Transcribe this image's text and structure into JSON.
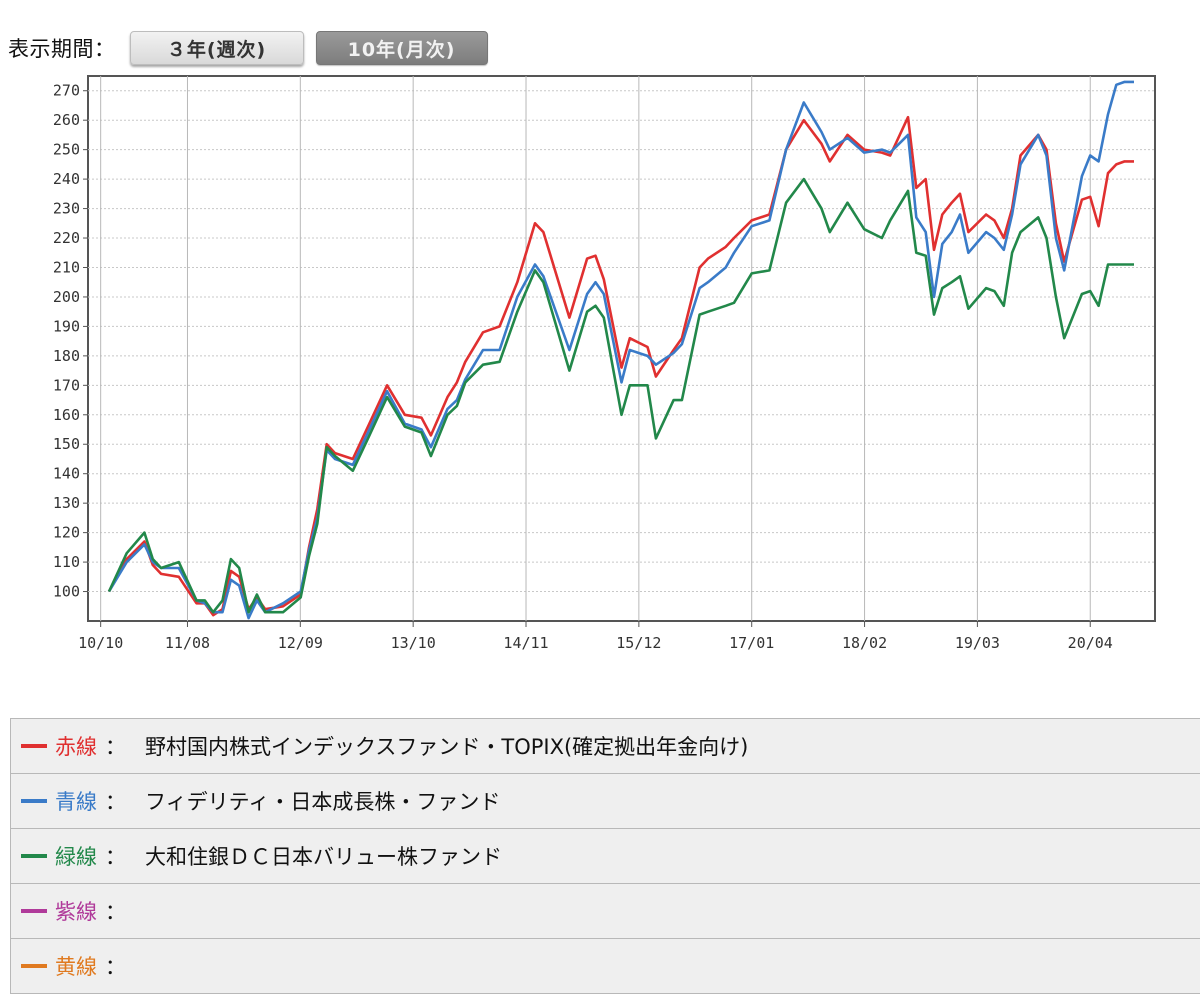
{
  "period_selector": {
    "label": "表示期間：",
    "options": [
      {
        "label": "３年(週次)",
        "active": true
      },
      {
        "label": "10年(月次)",
        "active": false
      }
    ]
  },
  "legend": [
    {
      "name": "赤線",
      "colon": "：",
      "fund": "野村国内株式インデックスファンド・TOPIX(確定拠出年金向け)",
      "color": "#e03030"
    },
    {
      "name": "青線",
      "colon": "：",
      "fund": "フィデリティ・日本成長株・ファンド",
      "color": "#3a7bc8"
    },
    {
      "name": "緑線",
      "colon": "：",
      "fund": "大和住銀ＤＣ日本バリュー株ファンド",
      "color": "#22884a"
    },
    {
      "name": "紫線",
      "colon": "：",
      "fund": "",
      "color": "#b03a9a"
    },
    {
      "name": "黄線",
      "colon": "：",
      "fund": "",
      "color": "#e07a20"
    }
  ],
  "chart_data": {
    "type": "line",
    "x_tick_labels": [
      "10/10",
      "11/08",
      "12/09",
      "13/10",
      "14/11",
      "15/12",
      "17/01",
      "18/02",
      "19/03",
      "20/04"
    ],
    "x_range": [
      2010.83,
      2020.67
    ],
    "ylim": [
      90,
      275
    ],
    "y_ticks": [
      100,
      110,
      120,
      130,
      140,
      150,
      160,
      170,
      180,
      190,
      200,
      210,
      220,
      230,
      240,
      250,
      260,
      270
    ],
    "grid": true,
    "series": [
      {
        "color": "#e03030",
        "x": [
          2010.83,
          2011.0,
          2011.17,
          2011.25,
          2011.33,
          2011.5,
          2011.67,
          2011.75,
          2011.83,
          2011.92,
          2012.0,
          2012.08,
          2012.17,
          2012.25,
          2012.33,
          2012.5,
          2012.67,
          2012.75,
          2012.83,
          2012.92,
          2013.0,
          2013.17,
          2013.33,
          2013.5,
          2013.67,
          2013.83,
          2013.92,
          2014.08,
          2014.17,
          2014.25,
          2014.42,
          2014.58,
          2014.75,
          2014.92,
          2015.0,
          2015.25,
          2015.42,
          2015.5,
          2015.58,
          2015.75,
          2015.83,
          2016.0,
          2016.08,
          2016.25,
          2016.33,
          2016.5,
          2016.58,
          2016.75,
          2016.83,
          2017.0,
          2017.17,
          2017.33,
          2017.5,
          2017.67,
          2017.75,
          2017.92,
          2018.08,
          2018.25,
          2018.33,
          2018.5,
          2018.58,
          2018.67,
          2018.75,
          2018.83,
          2018.92,
          2019.0,
          2019.08,
          2019.25,
          2019.33,
          2019.42,
          2019.5,
          2019.58,
          2019.75,
          2019.83,
          2019.92,
          2020.0,
          2020.17,
          2020.25,
          2020.33,
          2020.42,
          2020.5,
          2020.58,
          2020.67
        ],
        "values": [
          100,
          111,
          117,
          109,
          106,
          105,
          96,
          96,
          92,
          94,
          107,
          105,
          94,
          98,
          94,
          95,
          99,
          115,
          128,
          150,
          147,
          145,
          157,
          170,
          160,
          159,
          153,
          166,
          171,
          178,
          188,
          190,
          205,
          225,
          222,
          193,
          213,
          214,
          206,
          176,
          186,
          183,
          173,
          182,
          186,
          210,
          213,
          217,
          220,
          226,
          228,
          250,
          260,
          252,
          246,
          255,
          250,
          249,
          248,
          261,
          237,
          240,
          216,
          228,
          232,
          235,
          222,
          228,
          226,
          220,
          230,
          248,
          255,
          250,
          225,
          212,
          233,
          234,
          224,
          242,
          245,
          246,
          246
        ]
      },
      {
        "color": "#3a7bc8",
        "x": [
          2010.83,
          2011.0,
          2011.17,
          2011.25,
          2011.33,
          2011.5,
          2011.67,
          2011.75,
          2011.83,
          2011.92,
          2012.0,
          2012.08,
          2012.17,
          2012.25,
          2012.33,
          2012.5,
          2012.67,
          2012.75,
          2012.83,
          2012.92,
          2013.0,
          2013.17,
          2013.33,
          2013.5,
          2013.67,
          2013.83,
          2013.92,
          2014.08,
          2014.17,
          2014.25,
          2014.42,
          2014.58,
          2014.75,
          2014.92,
          2015.0,
          2015.25,
          2015.42,
          2015.5,
          2015.58,
          2015.75,
          2015.83,
          2016.0,
          2016.08,
          2016.25,
          2016.33,
          2016.5,
          2016.58,
          2016.75,
          2016.83,
          2017.0,
          2017.17,
          2017.33,
          2017.5,
          2017.67,
          2017.75,
          2017.92,
          2018.08,
          2018.25,
          2018.33,
          2018.5,
          2018.58,
          2018.67,
          2018.75,
          2018.83,
          2018.92,
          2019.0,
          2019.08,
          2019.25,
          2019.33,
          2019.42,
          2019.5,
          2019.58,
          2019.75,
          2019.83,
          2019.92,
          2020.0,
          2020.17,
          2020.25,
          2020.33,
          2020.42,
          2020.5,
          2020.58,
          2020.67
        ],
        "values": [
          100,
          110,
          116,
          110,
          108,
          108,
          97,
          96,
          93,
          93,
          104,
          102,
          91,
          97,
          93,
          96,
          100,
          114,
          125,
          148,
          145,
          143,
          155,
          168,
          157,
          155,
          149,
          162,
          165,
          172,
          182,
          182,
          200,
          211,
          207,
          182,
          201,
          205,
          201,
          171,
          182,
          180,
          177,
          181,
          184,
          203,
          205,
          210,
          215,
          224,
          226,
          250,
          266,
          256,
          250,
          254,
          249,
          250,
          249,
          255,
          227,
          222,
          200,
          218,
          222,
          228,
          215,
          222,
          220,
          216,
          228,
          245,
          255,
          248,
          220,
          209,
          241,
          248,
          246,
          262,
          272,
          273,
          273
        ]
      },
      {
        "color": "#22884a",
        "x": [
          2010.83,
          2011.0,
          2011.17,
          2011.25,
          2011.33,
          2011.5,
          2011.67,
          2011.75,
          2011.83,
          2011.92,
          2012.0,
          2012.08,
          2012.17,
          2012.25,
          2012.33,
          2012.5,
          2012.67,
          2012.75,
          2012.83,
          2012.92,
          2013.0,
          2013.17,
          2013.33,
          2013.5,
          2013.67,
          2013.83,
          2013.92,
          2014.08,
          2014.17,
          2014.25,
          2014.42,
          2014.58,
          2014.75,
          2014.92,
          2015.0,
          2015.25,
          2015.42,
          2015.5,
          2015.58,
          2015.75,
          2015.83,
          2016.0,
          2016.08,
          2016.25,
          2016.33,
          2016.5,
          2016.58,
          2016.75,
          2016.83,
          2017.0,
          2017.17,
          2017.33,
          2017.5,
          2017.67,
          2017.75,
          2017.92,
          2018.08,
          2018.25,
          2018.33,
          2018.5,
          2018.58,
          2018.67,
          2018.75,
          2018.83,
          2018.92,
          2019.0,
          2019.08,
          2019.25,
          2019.33,
          2019.42,
          2019.5,
          2019.58,
          2019.75,
          2019.83,
          2019.92,
          2020.0,
          2020.17,
          2020.25,
          2020.33,
          2020.42,
          2020.5,
          2020.58,
          2020.67
        ],
        "values": [
          100,
          113,
          120,
          111,
          108,
          110,
          97,
          97,
          93,
          97,
          111,
          108,
          93,
          99,
          93,
          93,
          98,
          112,
          123,
          149,
          146,
          141,
          153,
          166,
          156,
          154,
          146,
          160,
          163,
          171,
          177,
          178,
          195,
          209,
          205,
          175,
          195,
          197,
          193,
          160,
          170,
          170,
          152,
          165,
          165,
          194,
          195,
          197,
          198,
          208,
          209,
          232,
          240,
          230,
          222,
          232,
          223,
          220,
          226,
          236,
          215,
          214,
          194,
          203,
          205,
          207,
          196,
          203,
          202,
          197,
          215,
          222,
          227,
          220,
          200,
          186,
          201,
          202,
          197,
          211,
          211,
          211,
          211
        ]
      }
    ]
  }
}
